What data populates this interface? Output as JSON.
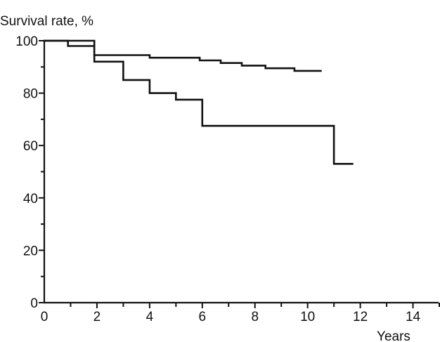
{
  "chart_data": {
    "type": "line",
    "title": "",
    "ylabel": "Survival rate, %",
    "xlabel": "Years",
    "xlim": [
      0,
      15
    ],
    "ylim": [
      0,
      100
    ],
    "x_ticks": [
      0,
      2,
      4,
      6,
      8,
      10,
      12,
      14
    ],
    "y_ticks": [
      0,
      20,
      40,
      60,
      80,
      100
    ],
    "grid": false,
    "legend": "none",
    "series": [
      {
        "step": true,
        "color": "#111111",
        "x": [
          0,
          1.9,
          1.9,
          4.0,
          4.0,
          5.9,
          5.9,
          6.7,
          6.7,
          7.5,
          7.5,
          8.4,
          8.4,
          9.5,
          9.5,
          10.5
        ],
        "y": [
          100,
          100,
          94.5,
          94.5,
          93.5,
          93.5,
          92.5,
          92.5,
          91.5,
          91.5,
          90.5,
          90.5,
          89.5,
          89.5,
          88.5,
          88.5
        ]
      },
      {
        "step": true,
        "color": "#111111",
        "x": [
          0,
          0.9,
          0.9,
          1.9,
          1.9,
          3.0,
          3.0,
          4.0,
          4.0,
          5.0,
          5.0,
          6.0,
          6.0,
          11.0,
          11.0,
          11.7
        ],
        "y": [
          100,
          100,
          98,
          98,
          92,
          92,
          85,
          85,
          80,
          80,
          77.5,
          77.5,
          67.5,
          67.5,
          53,
          53
        ]
      }
    ]
  }
}
